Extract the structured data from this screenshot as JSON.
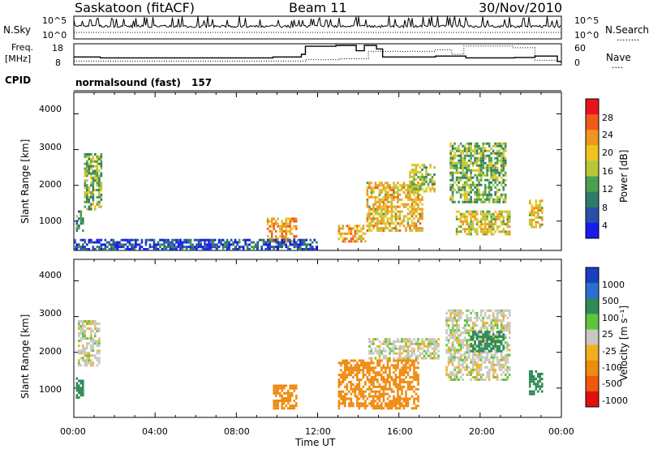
{
  "header": {
    "station": "Saskatoon (fitACF)",
    "beam": "Beam 11",
    "date": "30/Nov/2010"
  },
  "noise_panel": {
    "left_label": "N.Sky",
    "left_ticks": [
      "10^5",
      "10^0"
    ],
    "right_ticks": [
      "10^5",
      "10^0"
    ],
    "right_label": "N.Search",
    "right_marker": "........"
  },
  "freq_panel": {
    "left_label_1": "Freq.",
    "left_label_2": "[MHz]",
    "left_ticks": [
      "18",
      "8"
    ],
    "right_ticks": [
      "60",
      "0"
    ],
    "right_label": "Nave",
    "right_marker": "...."
  },
  "cpid": {
    "label": "CPID",
    "program": "normalsound (fast)",
    "id": "157"
  },
  "power_panel": {
    "ylabel": "Slant Range [km]",
    "yticks": [
      "4000",
      "3000",
      "2000",
      "1000"
    ],
    "colorbar_label": "Power [dB]",
    "colorbar_ticks": [
      "28",
      "24",
      "20",
      "16",
      "12",
      "8",
      "4"
    ],
    "colorbar_colors": [
      "#e8141c",
      "#f25a1c",
      "#f0961e",
      "#f0c41e",
      "#b6c83a",
      "#4aa04e",
      "#2f7c66",
      "#2a4fa8",
      "#1a1af0"
    ]
  },
  "velocity_panel": {
    "ylabel": "Slant Range [km]",
    "yticks": [
      "4000",
      "3000",
      "2000",
      "1000"
    ],
    "colorbar_label": "Velocity [m s⁻¹]",
    "colorbar_ticks": [
      "1000",
      "500",
      "100",
      "25",
      "-25",
      "-100",
      "-500",
      "-1000"
    ],
    "colorbar_colors": [
      "#1a3fbf",
      "#2a6fd0",
      "#2e8b57",
      "#5ec43a",
      "#c8c8c0",
      "#f0b020",
      "#f08a10",
      "#f0580c",
      "#e01010"
    ]
  },
  "xaxis": {
    "ticks": [
      "00:00",
      "04:00",
      "08:00",
      "12:00",
      "16:00",
      "20:00",
      "00:00"
    ],
    "label": "Time UT"
  },
  "chart_data": {
    "type": "heatmap",
    "x_range_hours": [
      0,
      24
    ],
    "y_range_km": [
      180,
      4600
    ],
    "freq_mhz_levels": [
      [
        0,
        11.5
      ],
      [
        1.3,
        11
      ],
      [
        9.8,
        11.5
      ],
      [
        11.2,
        13
      ],
      [
        11.4,
        17.5
      ],
      [
        12.9,
        18
      ],
      [
        13.9,
        15
      ],
      [
        14.3,
        18
      ],
      [
        14.9,
        16
      ],
      [
        15.2,
        11.5
      ],
      [
        17.8,
        12
      ],
      [
        19.3,
        11
      ],
      [
        21.7,
        11.2
      ],
      [
        22.7,
        12
      ],
      [
        23.8,
        9
      ]
    ],
    "nave_levels": [
      [
        0,
        7
      ],
      [
        11.4,
        12
      ],
      [
        13.1,
        15
      ],
      [
        14.5,
        40
      ],
      [
        17.8,
        45
      ],
      [
        18.6,
        30
      ],
      [
        19.2,
        58
      ],
      [
        21.6,
        52
      ],
      [
        22.7,
        10
      ],
      [
        23.8,
        5
      ]
    ],
    "power_echo_regions": [
      {
        "x": [
          0.5,
          1.4
        ],
        "y": [
          1300,
          2900
        ],
        "dB": 14
      },
      {
        "x": [
          0.1,
          0.5
        ],
        "y": [
          700,
          1300
        ],
        "dB": 10
      },
      {
        "x": [
          9.5,
          11.0
        ],
        "y": [
          400,
          1100
        ],
        "dB": 22
      },
      {
        "x": [
          13.0,
          14.4
        ],
        "y": [
          400,
          900
        ],
        "dB": 22
      },
      {
        "x": [
          14.4,
          17.2
        ],
        "y": [
          700,
          2100
        ],
        "dB": 20
      },
      {
        "x": [
          16.5,
          17.8
        ],
        "y": [
          1800,
          2600
        ],
        "dB": 16
      },
      {
        "x": [
          18.5,
          21.3
        ],
        "y": [
          1500,
          3200
        ],
        "dB": 14
      },
      {
        "x": [
          18.8,
          21.5
        ],
        "y": [
          600,
          1300
        ],
        "dB": 18
      },
      {
        "x": [
          22.4,
          23.1
        ],
        "y": [
          800,
          1600
        ],
        "dB": 20
      },
      {
        "x": [
          0,
          12.0
        ],
        "y": [
          180,
          500
        ],
        "dB": 6
      }
    ],
    "velocity_echo_regions": [
      {
        "x": [
          0.2,
          1.3
        ],
        "y": [
          1600,
          2900
        ],
        "mps": 0
      },
      {
        "x": [
          0.1,
          0.5
        ],
        "y": [
          700,
          1300
        ],
        "mps": 100
      },
      {
        "x": [
          9.8,
          11.0
        ],
        "y": [
          400,
          1100
        ],
        "mps": -100
      },
      {
        "x": [
          13.0,
          17.0
        ],
        "y": [
          400,
          1800
        ],
        "mps": -100
      },
      {
        "x": [
          14.5,
          18.0
        ],
        "y": [
          1800,
          2400
        ],
        "mps": 0
      },
      {
        "x": [
          18.3,
          21.5
        ],
        "y": [
          1200,
          3200
        ],
        "mps": 0
      },
      {
        "x": [
          19.5,
          21.2
        ],
        "y": [
          2000,
          2600
        ],
        "mps": 150
      },
      {
        "x": [
          22.4,
          23.1
        ],
        "y": [
          800,
          1500
        ],
        "mps": 100
      }
    ]
  }
}
